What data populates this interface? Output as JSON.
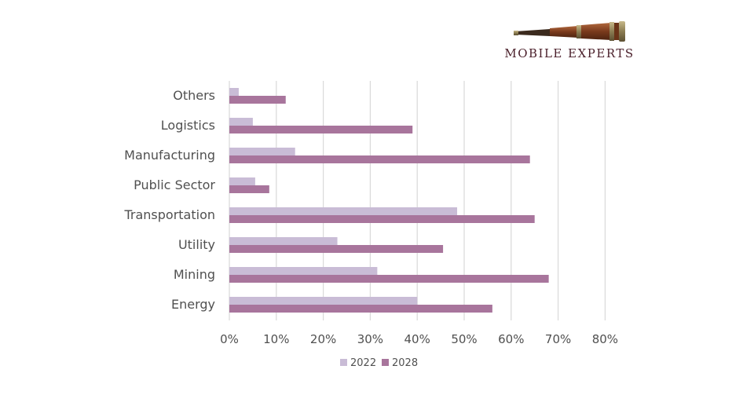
{
  "logo": {
    "text": "MOBILE EXPERTS",
    "icon": "telescope-icon",
    "text_color": "#4a1f2a"
  },
  "chart_data": {
    "type": "bar",
    "orientation": "horizontal",
    "categories": [
      "Others",
      "Logistics",
      "Manufacturing",
      "Public Sector",
      "Transportation",
      "Utility",
      "Mining",
      "Energy"
    ],
    "series": [
      {
        "name": "2022",
        "color": "#c9bcd6",
        "values": [
          2,
          5,
          14,
          5.5,
          48.5,
          23,
          31.5,
          40
        ]
      },
      {
        "name": "2028",
        "color": "#a8759c",
        "values": [
          12,
          39,
          64,
          8.5,
          65,
          45.5,
          68,
          56
        ]
      }
    ],
    "x_ticks": [
      "0%",
      "10%",
      "20%",
      "30%",
      "40%",
      "50%",
      "60%",
      "70%",
      "80%"
    ],
    "xlim": [
      0,
      80
    ],
    "grid": "vertical",
    "legend_position": "bottom"
  }
}
